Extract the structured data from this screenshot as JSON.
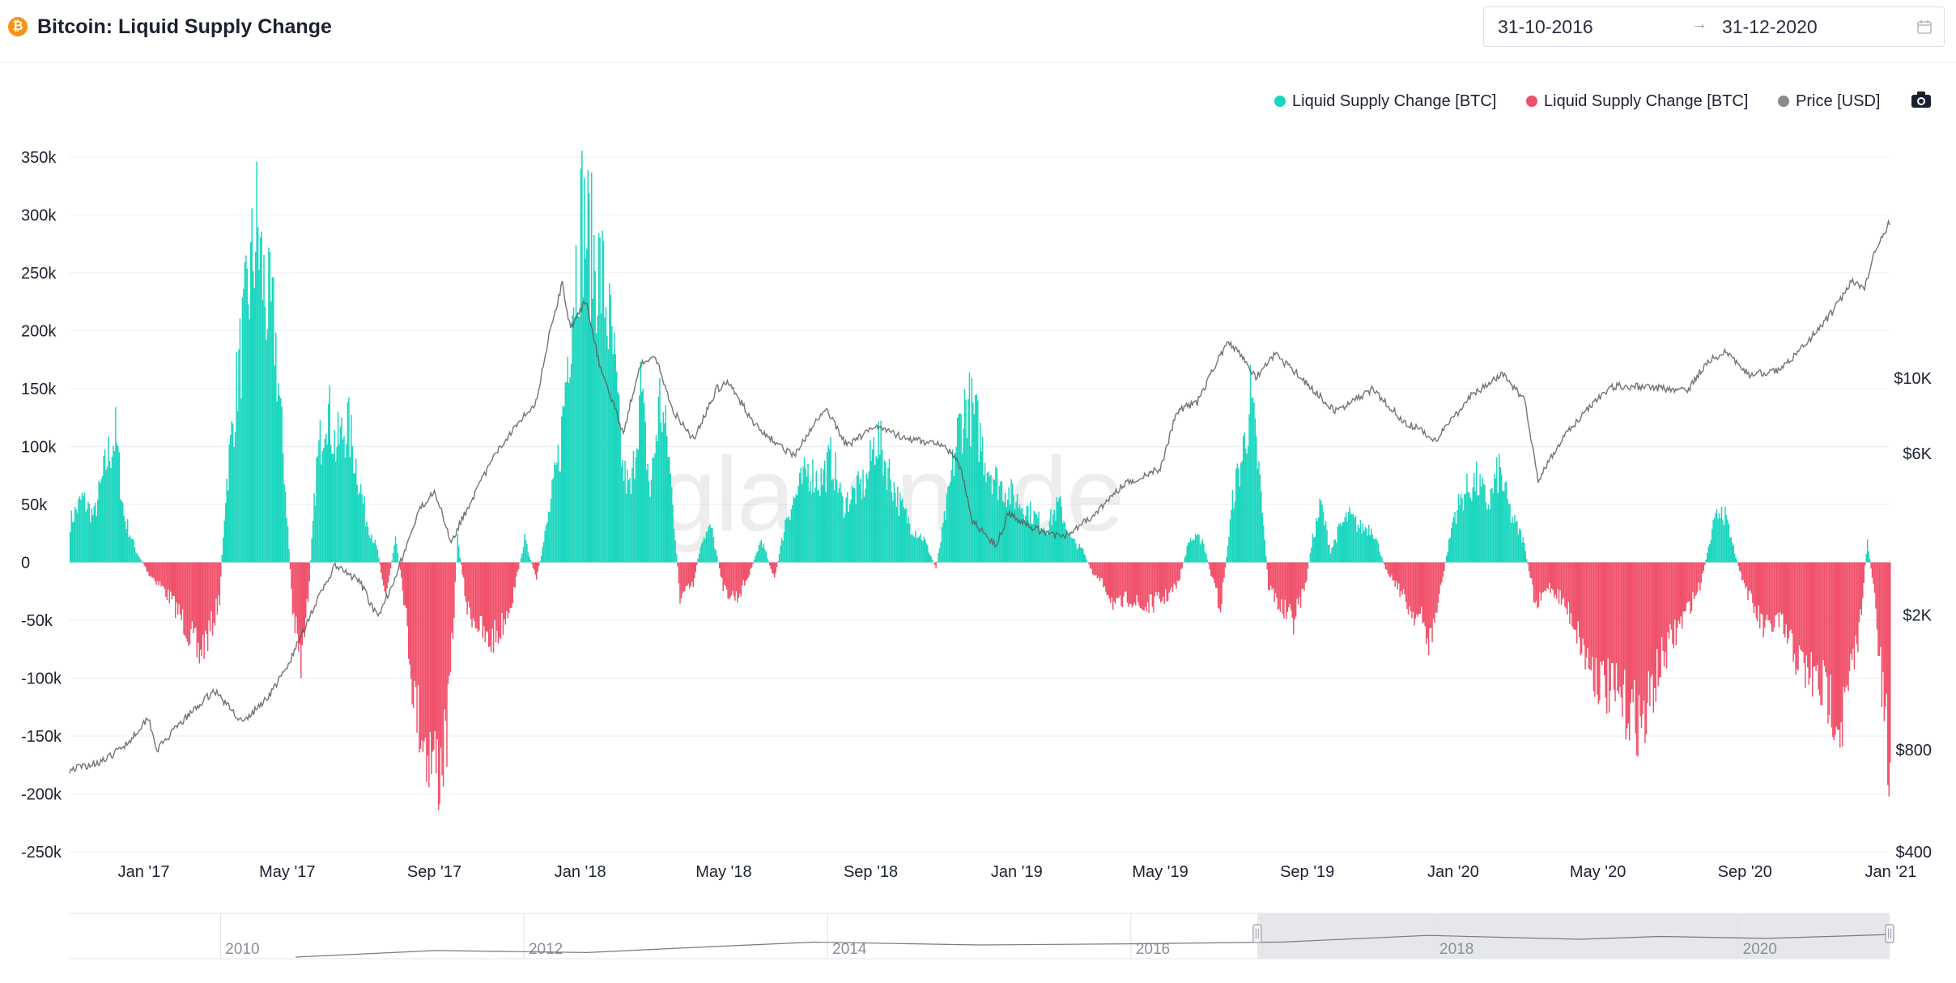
{
  "header": {
    "coin_symbol": "₿",
    "title": "Bitcoin: Liquid Supply Change",
    "date_start": "31-10-2016",
    "date_arrow": "→",
    "date_end": "31-12-2020"
  },
  "legend": {
    "items": [
      {
        "label": "Liquid Supply Change [BTC]",
        "color": "#1ad6be"
      },
      {
        "label": "Liquid Supply Change [BTC]",
        "color": "#f0506a"
      },
      {
        "label": "Price [USD]",
        "color": "#8a8a8a"
      }
    ]
  },
  "watermark": "glassnode",
  "chart_data": {
    "type": "bar",
    "title": "Bitcoin: Liquid Supply Change",
    "x_range": [
      "2016-10-31",
      "2020-12-31"
    ],
    "x_tick_labels": [
      "Jan '17",
      "May '17",
      "Sep '17",
      "Jan '18",
      "May '18",
      "Sep '18",
      "Jan '19",
      "May '19",
      "Sep '19",
      "Jan '20",
      "May '20",
      "Sep '20",
      "Jan '21"
    ],
    "y_left": {
      "ylim": [
        -250000,
        350000
      ],
      "ticks": [
        350000,
        300000,
        250000,
        200000,
        150000,
        100000,
        50000,
        0,
        -50000,
        -100000,
        -150000,
        -200000,
        -250000
      ],
      "tick_labels": [
        "350k",
        "300k",
        "250k",
        "200k",
        "150k",
        "100k",
        "50k",
        "0",
        "-50k",
        "-100k",
        "-150k",
        "-200k",
        "-250k"
      ]
    },
    "y_right": {
      "scale": "log",
      "ylim": [
        400,
        45000
      ],
      "ticks": [
        10000,
        6000,
        2000,
        800,
        400
      ],
      "tick_labels": [
        "$10K",
        "$6K",
        "$2K",
        "$800",
        "$400"
      ]
    },
    "grid": true,
    "legend_position": "top-right",
    "series": [
      {
        "name": "Liquid Supply Change [BTC]",
        "axis": "left",
        "color_positive": "#1ad6be",
        "color_negative": "#f0506a",
        "points": [
          [
            "2016-10-31",
            35000
          ],
          [
            "2016-11-10",
            55000
          ],
          [
            "2016-11-20",
            40000
          ],
          [
            "2016-12-01",
            90000
          ],
          [
            "2016-12-08",
            110000
          ],
          [
            "2016-12-15",
            40000
          ],
          [
            "2016-12-25",
            10000
          ],
          [
            "2017-01-05",
            -10000
          ],
          [
            "2017-01-15",
            -20000
          ],
          [
            "2017-01-25",
            -35000
          ],
          [
            "2017-02-05",
            -55000
          ],
          [
            "2017-02-15",
            -80000
          ],
          [
            "2017-02-25",
            -60000
          ],
          [
            "2017-03-05",
            -30000
          ],
          [
            "2017-03-10",
            60000
          ],
          [
            "2017-03-20",
            160000
          ],
          [
            "2017-03-30",
            240000
          ],
          [
            "2017-04-05",
            290000
          ],
          [
            "2017-04-12",
            230000
          ],
          [
            "2017-04-20",
            200000
          ],
          [
            "2017-04-28",
            80000
          ],
          [
            "2017-05-05",
            -40000
          ],
          [
            "2017-05-12",
            -90000
          ],
          [
            "2017-05-18",
            -30000
          ],
          [
            "2017-05-25",
            80000
          ],
          [
            "2017-06-02",
            140000
          ],
          [
            "2017-06-10",
            100000
          ],
          [
            "2017-06-20",
            120000
          ],
          [
            "2017-06-28",
            80000
          ],
          [
            "2017-07-05",
            40000
          ],
          [
            "2017-07-15",
            10000
          ],
          [
            "2017-07-22",
            -30000
          ],
          [
            "2017-07-30",
            20000
          ],
          [
            "2017-08-05",
            -20000
          ],
          [
            "2017-08-15",
            -120000
          ],
          [
            "2017-08-25",
            -160000
          ],
          [
            "2017-09-05",
            -180000
          ],
          [
            "2017-09-12",
            -140000
          ],
          [
            "2017-09-20",
            20000
          ],
          [
            "2017-09-28",
            -40000
          ],
          [
            "2017-10-05",
            -50000
          ],
          [
            "2017-10-15",
            -70000
          ],
          [
            "2017-10-25",
            -60000
          ],
          [
            "2017-11-05",
            -30000
          ],
          [
            "2017-11-15",
            20000
          ],
          [
            "2017-11-25",
            -15000
          ],
          [
            "2017-12-05",
            40000
          ],
          [
            "2017-12-15",
            100000
          ],
          [
            "2017-12-25",
            230000
          ],
          [
            "2018-01-02",
            300000
          ],
          [
            "2018-01-10",
            270000
          ],
          [
            "2018-01-20",
            240000
          ],
          [
            "2018-01-28",
            180000
          ],
          [
            "2018-02-05",
            80000
          ],
          [
            "2018-02-12",
            60000
          ],
          [
            "2018-02-20",
            150000
          ],
          [
            "2018-02-28",
            60000
          ],
          [
            "2018-03-08",
            140000
          ],
          [
            "2018-03-15",
            100000
          ],
          [
            "2018-03-25",
            -30000
          ],
          [
            "2018-04-05",
            -20000
          ],
          [
            "2018-04-12",
            20000
          ],
          [
            "2018-04-20",
            30000
          ],
          [
            "2018-05-01",
            -25000
          ],
          [
            "2018-05-12",
            -30000
          ],
          [
            "2018-05-22",
            -10000
          ],
          [
            "2018-06-01",
            20000
          ],
          [
            "2018-06-12",
            -15000
          ],
          [
            "2018-06-22",
            40000
          ],
          [
            "2018-07-01",
            60000
          ],
          [
            "2018-07-10",
            80000
          ],
          [
            "2018-07-20",
            70000
          ],
          [
            "2018-07-30",
            90000
          ],
          [
            "2018-08-08",
            50000
          ],
          [
            "2018-08-18",
            60000
          ],
          [
            "2018-08-28",
            70000
          ],
          [
            "2018-09-05",
            110000
          ],
          [
            "2018-09-15",
            80000
          ],
          [
            "2018-09-25",
            50000
          ],
          [
            "2018-10-05",
            30000
          ],
          [
            "2018-10-15",
            20000
          ],
          [
            "2018-10-25",
            -5000
          ],
          [
            "2018-11-05",
            60000
          ],
          [
            "2018-11-12",
            110000
          ],
          [
            "2018-11-20",
            140000
          ],
          [
            "2018-11-28",
            120000
          ],
          [
            "2018-12-05",
            90000
          ],
          [
            "2018-12-15",
            70000
          ],
          [
            "2018-12-25",
            60000
          ],
          [
            "2019-01-05",
            50000
          ],
          [
            "2019-01-15",
            40000
          ],
          [
            "2019-01-25",
            30000
          ],
          [
            "2019-02-05",
            50000
          ],
          [
            "2019-02-15",
            20000
          ],
          [
            "2019-02-25",
            10000
          ],
          [
            "2019-03-05",
            -10000
          ],
          [
            "2019-03-15",
            -20000
          ],
          [
            "2019-03-25",
            -40000
          ],
          [
            "2019-04-05",
            -30000
          ],
          [
            "2019-04-15",
            -40000
          ],
          [
            "2019-04-25",
            -35000
          ],
          [
            "2019-05-05",
            -30000
          ],
          [
            "2019-05-15",
            -20000
          ],
          [
            "2019-05-25",
            20000
          ],
          [
            "2019-06-05",
            20000
          ],
          [
            "2019-06-12",
            -10000
          ],
          [
            "2019-06-20",
            -40000
          ],
          [
            "2019-07-01",
            60000
          ],
          [
            "2019-07-08",
            90000
          ],
          [
            "2019-07-15",
            140000
          ],
          [
            "2019-07-22",
            80000
          ],
          [
            "2019-07-30",
            -20000
          ],
          [
            "2019-08-10",
            -40000
          ],
          [
            "2019-08-20",
            -50000
          ],
          [
            "2019-08-30",
            -20000
          ],
          [
            "2019-09-05",
            20000
          ],
          [
            "2019-09-12",
            50000
          ],
          [
            "2019-09-20",
            10000
          ],
          [
            "2019-09-28",
            30000
          ],
          [
            "2019-10-05",
            40000
          ],
          [
            "2019-10-15",
            30000
          ],
          [
            "2019-10-25",
            30000
          ],
          [
            "2019-11-05",
            -5000
          ],
          [
            "2019-11-15",
            -20000
          ],
          [
            "2019-11-25",
            -40000
          ],
          [
            "2019-12-05",
            -50000
          ],
          [
            "2019-12-12",
            -70000
          ],
          [
            "2019-12-20",
            -30000
          ],
          [
            "2020-01-01",
            40000
          ],
          [
            "2020-01-10",
            60000
          ],
          [
            "2020-01-20",
            70000
          ],
          [
            "2020-01-30",
            50000
          ],
          [
            "2020-02-08",
            80000
          ],
          [
            "2020-02-18",
            40000
          ],
          [
            "2020-02-28",
            20000
          ],
          [
            "2020-03-10",
            -40000
          ],
          [
            "2020-03-20",
            -20000
          ],
          [
            "2020-03-30",
            -30000
          ],
          [
            "2020-04-10",
            -50000
          ],
          [
            "2020-04-20",
            -80000
          ],
          [
            "2020-05-01",
            -100000
          ],
          [
            "2020-05-10",
            -110000
          ],
          [
            "2020-05-20",
            -120000
          ],
          [
            "2020-05-30",
            -130000
          ],
          [
            "2020-06-08",
            -140000
          ],
          [
            "2020-06-15",
            -110000
          ],
          [
            "2020-06-25",
            -80000
          ],
          [
            "2020-07-05",
            -60000
          ],
          [
            "2020-07-15",
            -40000
          ],
          [
            "2020-07-25",
            -20000
          ],
          [
            "2020-08-05",
            30000
          ],
          [
            "2020-08-12",
            50000
          ],
          [
            "2020-08-20",
            20000
          ],
          [
            "2020-08-28",
            -10000
          ],
          [
            "2020-09-08",
            -40000
          ],
          [
            "2020-09-18",
            -60000
          ],
          [
            "2020-09-28",
            -50000
          ],
          [
            "2020-10-08",
            -70000
          ],
          [
            "2020-10-18",
            -90000
          ],
          [
            "2020-10-28",
            -100000
          ],
          [
            "2020-11-05",
            -110000
          ],
          [
            "2020-11-12",
            -120000
          ],
          [
            "2020-11-20",
            -140000
          ],
          [
            "2020-11-28",
            -100000
          ],
          [
            "2020-12-05",
            -60000
          ],
          [
            "2020-12-12",
            20000
          ],
          [
            "2020-12-18",
            -30000
          ],
          [
            "2020-12-24",
            -110000
          ],
          [
            "2020-12-28",
            -150000
          ],
          [
            "2020-12-31",
            -200000
          ]
        ]
      },
      {
        "name": "Price [USD]",
        "axis": "right",
        "color": "#8a8a8a",
        "points": [
          [
            "2016-10-31",
            700
          ],
          [
            "2016-11-15",
            720
          ],
          [
            "2016-12-01",
            750
          ],
          [
            "2016-12-20",
            850
          ],
          [
            "2017-01-05",
            1000
          ],
          [
            "2017-01-12",
            800
          ],
          [
            "2017-02-01",
            960
          ],
          [
            "2017-03-01",
            1200
          ],
          [
            "2017-03-25",
            960
          ],
          [
            "2017-04-15",
            1150
          ],
          [
            "2017-05-01",
            1400
          ],
          [
            "2017-05-20",
            2000
          ],
          [
            "2017-06-10",
            2800
          ],
          [
            "2017-07-01",
            2500
          ],
          [
            "2017-07-16",
            1950
          ],
          [
            "2017-08-01",
            2700
          ],
          [
            "2017-08-20",
            4100
          ],
          [
            "2017-09-01",
            4700
          ],
          [
            "2017-09-15",
            3300
          ],
          [
            "2017-10-01",
            4300
          ],
          [
            "2017-10-20",
            5800
          ],
          [
            "2017-11-08",
            7300
          ],
          [
            "2017-11-25",
            8500
          ],
          [
            "2017-12-07",
            14000
          ],
          [
            "2017-12-17",
            19000
          ],
          [
            "2017-12-24",
            14000
          ],
          [
            "2018-01-06",
            17000
          ],
          [
            "2018-01-17",
            11000
          ],
          [
            "2018-02-06",
            6900
          ],
          [
            "2018-02-20",
            11000
          ],
          [
            "2018-03-05",
            11500
          ],
          [
            "2018-03-20",
            8000
          ],
          [
            "2018-04-06",
            6600
          ],
          [
            "2018-04-25",
            9300
          ],
          [
            "2018-05-05",
            9700
          ],
          [
            "2018-05-25",
            7500
          ],
          [
            "2018-06-12",
            6500
          ],
          [
            "2018-06-29",
            5900
          ],
          [
            "2018-07-25",
            8200
          ],
          [
            "2018-08-12",
            6300
          ],
          [
            "2018-09-05",
            7300
          ],
          [
            "2018-10-01",
            6600
          ],
          [
            "2018-11-01",
            6400
          ],
          [
            "2018-11-15",
            5500
          ],
          [
            "2018-11-25",
            3800
          ],
          [
            "2018-12-15",
            3200
          ],
          [
            "2018-12-25",
            4000
          ],
          [
            "2019-01-15",
            3600
          ],
          [
            "2019-02-07",
            3400
          ],
          [
            "2019-03-01",
            3800
          ],
          [
            "2019-04-02",
            4900
          ],
          [
            "2019-05-01",
            5400
          ],
          [
            "2019-05-15",
            8000
          ],
          [
            "2019-06-01",
            8500
          ],
          [
            "2019-06-26",
            12800
          ],
          [
            "2019-07-10",
            11500
          ],
          [
            "2019-07-20",
            10000
          ],
          [
            "2019-08-05",
            11800
          ],
          [
            "2019-08-25",
            10200
          ],
          [
            "2019-09-24",
            8000
          ],
          [
            "2019-10-26",
            9300
          ],
          [
            "2019-11-20",
            7500
          ],
          [
            "2019-12-18",
            6600
          ],
          [
            "2020-01-15",
            8800
          ],
          [
            "2020-02-12",
            10300
          ],
          [
            "2020-03-01",
            8600
          ],
          [
            "2020-03-12",
            5000
          ],
          [
            "2020-04-01",
            6600
          ],
          [
            "2020-04-30",
            8700
          ],
          [
            "2020-05-15",
            9500
          ],
          [
            "2020-06-15",
            9400
          ],
          [
            "2020-07-15",
            9200
          ],
          [
            "2020-08-01",
            11300
          ],
          [
            "2020-08-17",
            12000
          ],
          [
            "2020-09-05",
            10200
          ],
          [
            "2020-10-01",
            10600
          ],
          [
            "2020-10-25",
            13000
          ],
          [
            "2020-11-15",
            16000
          ],
          [
            "2020-11-30",
            19500
          ],
          [
            "2020-12-10",
            18300
          ],
          [
            "2020-12-17",
            23000
          ],
          [
            "2020-12-31",
            29000
          ]
        ]
      }
    ]
  },
  "navigator": {
    "x_range": [
      "2009-01-03",
      "2020-12-31"
    ],
    "labels": [
      "2010",
      "2012",
      "2014",
      "2016",
      "2018",
      "2020"
    ],
    "selection": [
      "2016-10-31",
      "2020-12-31"
    ]
  }
}
